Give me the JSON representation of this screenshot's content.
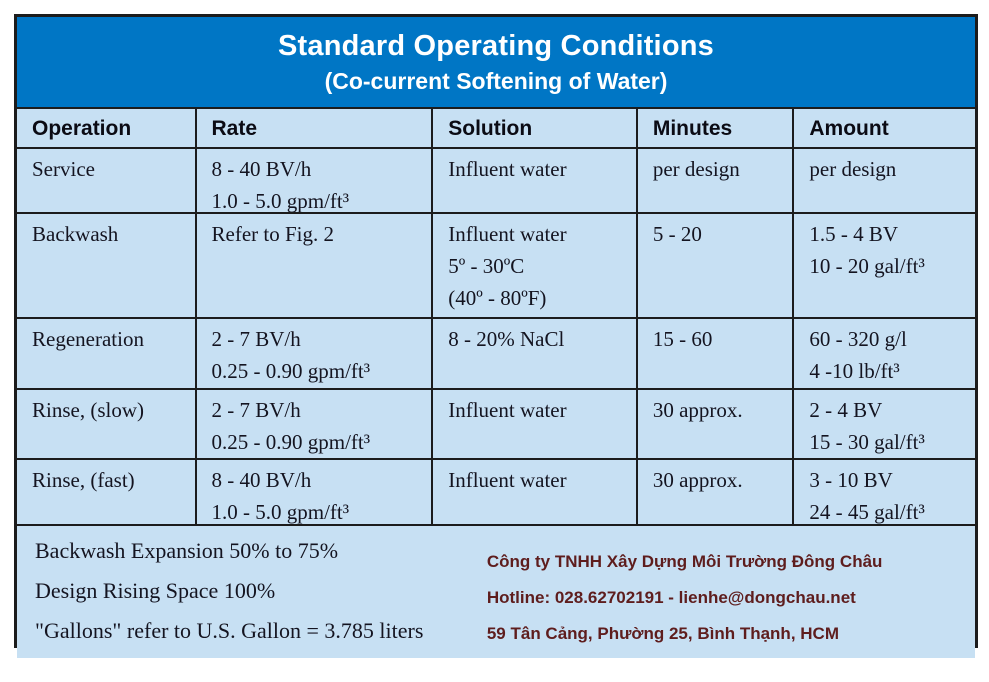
{
  "title": {
    "main": "Standard Operating Conditions",
    "sub": "(Co-current Softening of Water)"
  },
  "table": {
    "headers": [
      "Operation",
      "Rate",
      "Solution",
      "Minutes",
      "Amount"
    ],
    "rows": [
      {
        "operation": "Service",
        "rate": "8 - 40 BV/h\n1.0 - 5.0 gpm/ft³",
        "solution": "Influent water",
        "minutes": "per design",
        "amount": "per design"
      },
      {
        "operation": "Backwash",
        "rate": "Refer to Fig. 2",
        "solution": "Influent water\n5º - 30ºC\n(40º - 80ºF)",
        "minutes": "5 - 20",
        "amount": "1.5 - 4 BV\n10 - 20 gal/ft³"
      },
      {
        "operation": "Regeneration",
        "rate": "2 - 7 BV/h\n0.25 - 0.90 gpm/ft³",
        "solution": "8 - 20% NaCl",
        "minutes": "15 - 60",
        "amount": "60 - 320 g/l\n4 -10 lb/ft³"
      },
      {
        "operation": "Rinse, (slow)",
        "rate": "2 - 7 BV/h\n0.25 - 0.90 gpm/ft³",
        "solution": "Influent water",
        "minutes": "30 approx.",
        "amount": "2 - 4 BV\n15 - 30 gal/ft³"
      },
      {
        "operation": "Rinse, (fast)",
        "rate": "8 - 40 BV/h\n1.0 - 5.0 gpm/ft³",
        "solution": "Influent water",
        "minutes": "30 approx.",
        "amount": "3 - 10 BV\n24 - 45 gal/ft³"
      }
    ]
  },
  "footer": {
    "notes": [
      "Backwash Expansion 50% to 75%",
      "Design Rising Space 100%",
      "\"Gallons\" refer to U.S. Gallon = 3.785 liters"
    ],
    "company": {
      "name": "Công ty TNHH Xây Dựng Môi Trường Đông Châu",
      "hotline": "Hotline: 028.62702191 - lienhe@dongchau.net",
      "address": "59 Tân Cảng, Phường 25, Bình Thạnh, HCM"
    }
  },
  "colors": {
    "header_blue": "#0076C5",
    "cell_blue": "#C7E0F3",
    "border": "#1c1c1c",
    "company_text": "#5E1D1D"
  }
}
